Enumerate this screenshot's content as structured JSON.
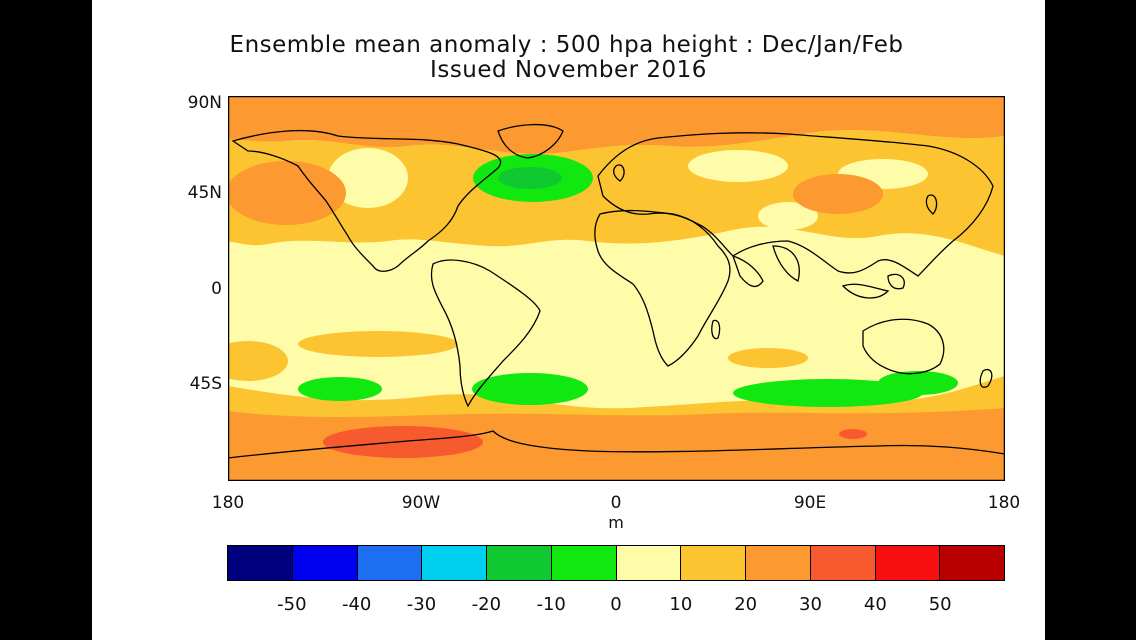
{
  "title": "Ensemble mean anomaly : 500 hpa height : Dec/Jan/Feb",
  "subtitle": "Issued November 2016",
  "lat_labels": [
    "90N",
    "45N",
    "0",
    "45S"
  ],
  "lon_labels": [
    "180",
    "90W",
    "0",
    "90E",
    "180"
  ],
  "unit": "m",
  "colorbar": {
    "colors": [
      "#00007f",
      "#0000f0",
      "#1c6ff0",
      "#00d0f0",
      "#10c830",
      "#10e810",
      "#fefca8",
      "#fcc430",
      "#fc9930",
      "#f85a30",
      "#f81010",
      "#b80000"
    ],
    "labels": [
      "-50",
      "-40",
      "-30",
      "-20",
      "-10",
      "0",
      "10",
      "20",
      "30",
      "40",
      "50"
    ]
  },
  "map": {
    "region": "global",
    "lat_range": [
      -90,
      90
    ],
    "lon_range": [
      -180,
      180
    ],
    "background_anomaly": "0 to 10",
    "anomaly_regions": [
      {
        "name": "northern-polar-band",
        "range": "20 to 30"
      },
      {
        "name": "north-pacific-high",
        "range": "20 to 30"
      },
      {
        "name": "north-atlantic-low",
        "range": "-10 to -20"
      },
      {
        "name": "southern-ocean-lows",
        "range": "0 to -10"
      },
      {
        "name": "south-pacific-high",
        "range": "30 to 40"
      },
      {
        "name": "antarctic-band",
        "range": "20 to 30"
      }
    ]
  }
}
